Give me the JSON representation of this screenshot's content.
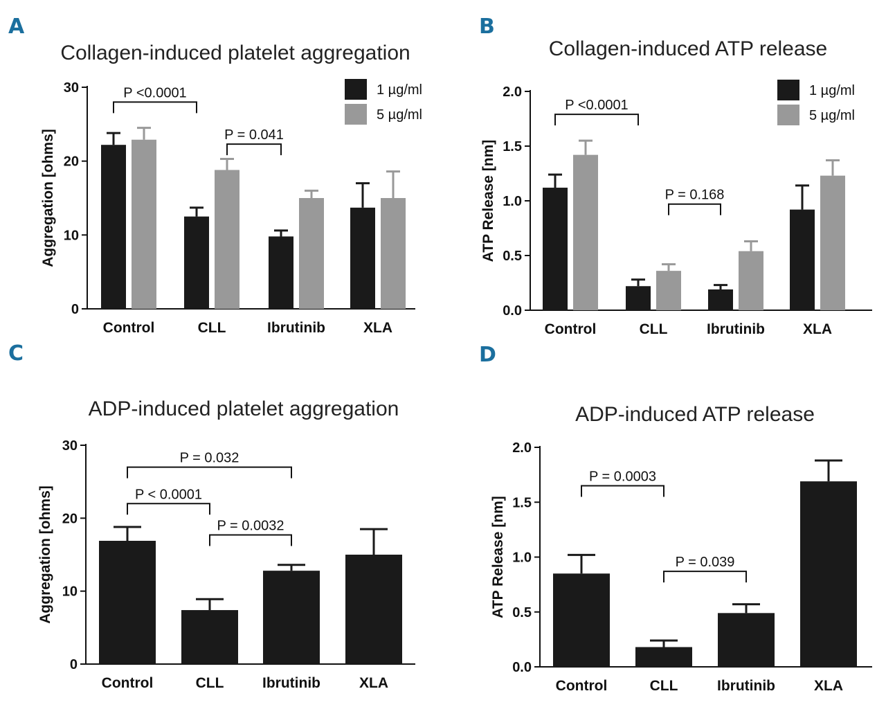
{
  "colors": {
    "series1": "#1a1a1a",
    "series2": "#999999",
    "panel_letter": "#1b6f9e"
  },
  "chart_data": [
    {
      "panel": "A",
      "type": "bar",
      "title": "Collagen-induced platelet aggregation",
      "ylabel": "Aggregation [ohms]",
      "ylim": [
        0,
        30
      ],
      "yticks": [
        0,
        10,
        20,
        30
      ],
      "ytick_labels": [
        "0",
        "10",
        "20",
        "30"
      ],
      "categories": [
        "Control",
        "CLL",
        "Ibrutinib",
        "XLA"
      ],
      "legend": {
        "position": "top-right",
        "entries": [
          "1 µg/ml",
          "5 µg/ml"
        ]
      },
      "series": [
        {
          "name": "1 µg/ml",
          "values": [
            22.2,
            12.5,
            9.8,
            13.7
          ],
          "errors": [
            1.6,
            1.2,
            0.8,
            3.3
          ]
        },
        {
          "name": "5 µg/ml",
          "values": [
            22.9,
            18.8,
            15.0,
            15.0
          ],
          "errors": [
            1.6,
            1.5,
            1.0,
            3.6
          ]
        }
      ],
      "annotations": [
        {
          "text": "P <0.0001",
          "from": [
            0,
            0
          ],
          "to": [
            1,
            0
          ],
          "y": 28.0
        },
        {
          "text": "P = 0.041",
          "from": [
            1,
            1
          ],
          "to": [
            2,
            0
          ],
          "y": 22.3
        }
      ]
    },
    {
      "panel": "B",
      "type": "bar",
      "title": "Collagen-induced ATP release",
      "ylabel": "ATP Release [nm]",
      "ylim": [
        0,
        2.0
      ],
      "yticks": [
        0,
        0.5,
        1.0,
        1.5,
        2.0
      ],
      "ytick_labels": [
        "0.0",
        "0.5",
        "1.0",
        "1.5",
        "2.0"
      ],
      "categories": [
        "Control",
        "CLL",
        "Ibrutinib",
        "XLA"
      ],
      "legend": {
        "position": "top-right",
        "entries": [
          "1 µg/ml",
          "5 µg/ml"
        ]
      },
      "series": [
        {
          "name": "1 µg/ml",
          "values": [
            1.12,
            0.22,
            0.19,
            0.92
          ],
          "errors": [
            0.12,
            0.06,
            0.04,
            0.22
          ]
        },
        {
          "name": "5 µg/ml",
          "values": [
            1.42,
            0.36,
            0.54,
            1.23
          ],
          "errors": [
            0.13,
            0.06,
            0.09,
            0.14
          ]
        }
      ],
      "annotations": [
        {
          "text": "P <0.0001",
          "from": [
            0,
            0
          ],
          "to": [
            1,
            0
          ],
          "y": 1.79
        },
        {
          "text": "P = 0.168",
          "from": [
            1,
            1
          ],
          "to": [
            2,
            0
          ],
          "y": 0.97
        }
      ]
    },
    {
      "panel": "C",
      "type": "bar",
      "title": "ADP-induced platelet aggregation",
      "ylabel": "Aggregation [ohms]",
      "ylim": [
        0,
        30
      ],
      "yticks": [
        0,
        10,
        20,
        30
      ],
      "ytick_labels": [
        "0",
        "10",
        "20",
        "30"
      ],
      "categories": [
        "Control",
        "CLL",
        "Ibrutinib",
        "XLA"
      ],
      "series": [
        {
          "name": "ADP",
          "values": [
            16.9,
            7.4,
            12.8,
            15.0
          ],
          "errors": [
            1.9,
            1.5,
            0.8,
            3.5
          ]
        }
      ],
      "annotations": [
        {
          "text": "P = 0.032",
          "from": [
            0
          ],
          "to": [
            2
          ],
          "y": 27.0
        },
        {
          "text": "P < 0.0001",
          "from": [
            0
          ],
          "to": [
            1
          ],
          "y": 22.0
        },
        {
          "text": "P = 0.0032",
          "from": [
            1
          ],
          "to": [
            2
          ],
          "y": 17.7
        }
      ]
    },
    {
      "panel": "D",
      "type": "bar",
      "title": "ADP-induced ATP release",
      "ylabel": "ATP Release [nm]",
      "ylim": [
        0,
        2.0
      ],
      "yticks": [
        0,
        0.5,
        1.0,
        1.5,
        2.0
      ],
      "ytick_labels": [
        "0.0",
        "0.5",
        "1.0",
        "1.5",
        "2.0"
      ],
      "categories": [
        "Control",
        "CLL",
        "Ibrutinib",
        "XLA"
      ],
      "series": [
        {
          "name": "ADP",
          "values": [
            0.85,
            0.18,
            0.49,
            1.69
          ],
          "errors": [
            0.17,
            0.06,
            0.08,
            0.19
          ]
        }
      ],
      "annotations": [
        {
          "text": "P = 0.0003",
          "from": [
            0
          ],
          "to": [
            1
          ],
          "y": 1.65
        },
        {
          "text": "P = 0.039",
          "from": [
            1
          ],
          "to": [
            2
          ],
          "y": 0.87
        }
      ]
    }
  ]
}
